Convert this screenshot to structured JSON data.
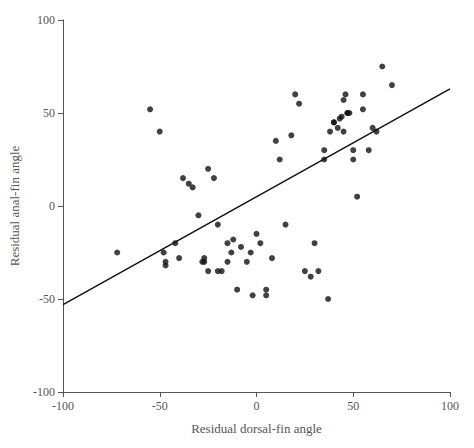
{
  "chart_data": {
    "type": "scatter",
    "xlabel": "Residual dorsal-fin angle",
    "ylabel": "Residual anal-fin angle",
    "series": [
      {
        "type": "scatter",
        "color": "#111111",
        "x": [
          -72,
          -55,
          -50,
          -48,
          -47,
          -47,
          -42,
          -40,
          -38,
          -35,
          -33,
          -30,
          -28,
          -27,
          -27,
          -25,
          -25,
          -22,
          -20,
          -20,
          -18,
          -15,
          -15,
          -13,
          -12,
          -10,
          -8,
          -5,
          -3,
          -2,
          0,
          2,
          5,
          5,
          8,
          10,
          12,
          15,
          18,
          20,
          22,
          25,
          28,
          30,
          32,
          35,
          35,
          37,
          38,
          40,
          40,
          42,
          43,
          44,
          45,
          45,
          46,
          47,
          47,
          48,
          50,
          50,
          52,
          55,
          55,
          58,
          60,
          62,
          65,
          70
        ],
        "values": [
          -25,
          52,
          40,
          -25,
          -30,
          -32,
          -20,
          -28,
          15,
          12,
          10,
          -5,
          -30,
          -28,
          -30,
          -35,
          20,
          15,
          -10,
          -35,
          -35,
          -30,
          -20,
          -25,
          -18,
          -45,
          -22,
          -30,
          -25,
          -48,
          -15,
          -20,
          -45,
          -48,
          -28,
          35,
          25,
          -10,
          38,
          60,
          55,
          -35,
          -38,
          -20,
          -35,
          25,
          30,
          -50,
          40,
          45,
          45,
          42,
          47,
          48,
          40,
          57,
          60,
          50,
          50,
          50,
          25,
          30,
          5,
          60,
          52,
          30,
          42,
          40,
          75,
          65
        ]
      },
      {
        "type": "line",
        "color": "#111111",
        "x": [
          -100,
          100
        ],
        "values": [
          -53,
          63
        ]
      }
    ],
    "xlim": [
      -100,
      100
    ],
    "ylim": [
      -100,
      100
    ],
    "xticks": [
      -100,
      -50,
      0,
      50,
      100
    ],
    "yticks": [
      -100,
      -50,
      0,
      50,
      100
    ],
    "grid": false
  }
}
